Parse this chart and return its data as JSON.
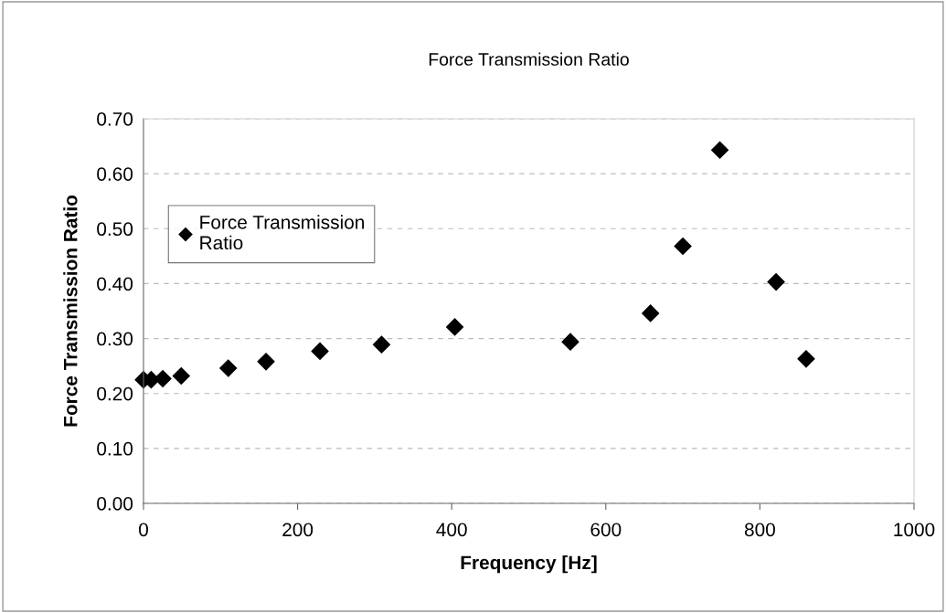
{
  "chart_data": {
    "type": "scatter",
    "title": "Force Transmission Ratio",
    "xlabel": "Frequency [Hz]",
    "ylabel": "Force Transmission Ratio",
    "xlim": [
      0,
      1000
    ],
    "xticks": [
      0,
      200,
      400,
      600,
      800,
      1000
    ],
    "ylim": [
      0,
      0.7
    ],
    "yticks": [
      {
        "value": 0,
        "label": "0.00"
      },
      {
        "value": 0.1,
        "label": "0.10"
      },
      {
        "value": 0.2,
        "label": "0.20"
      },
      {
        "value": 0.3,
        "label": "0.30"
      },
      {
        "value": 0.4,
        "label": "0.40"
      },
      {
        "value": 0.5,
        "label": "0.50"
      },
      {
        "value": 0.6,
        "label": "0.60"
      },
      {
        "value": 0.7,
        "label": "0.70"
      }
    ],
    "grid": "y",
    "legend": "left",
    "marker": "diamond",
    "series": [
      {
        "name": "Force Transmission\nRatio",
        "color": "#000000",
        "x": [
          0,
          10,
          25,
          49,
          110,
          159,
          229,
          309,
          404,
          554,
          658,
          700,
          748,
          821,
          860
        ],
        "values": [
          0.225,
          0.225,
          0.227,
          0.232,
          0.246,
          0.258,
          0.277,
          0.289,
          0.321,
          0.294,
          0.346,
          0.468,
          0.643,
          0.403,
          0.263
        ]
      }
    ]
  }
}
